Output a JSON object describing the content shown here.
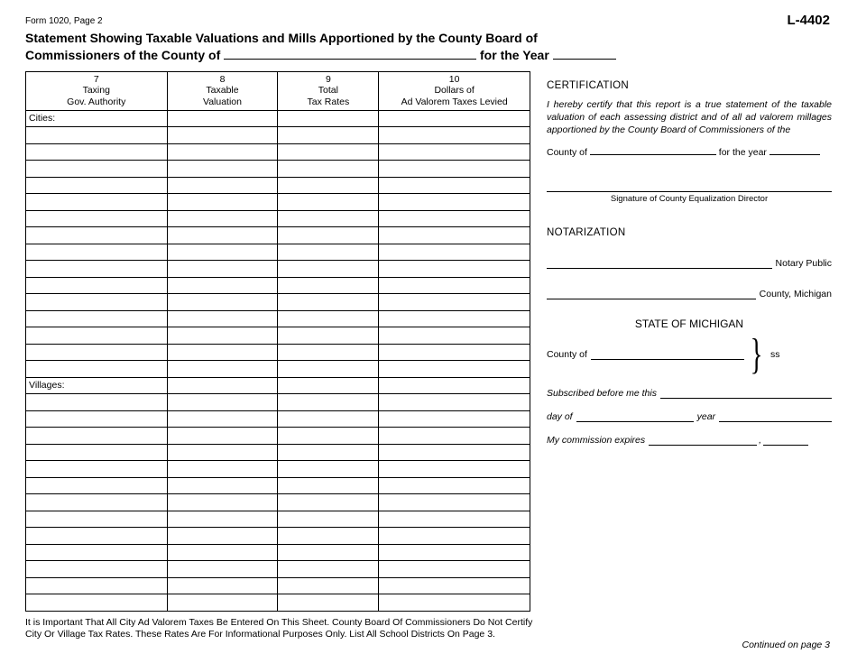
{
  "form_id": "Form 1020, Page 2",
  "form_code": "L-4402",
  "title_part1": "Statement Showing Taxable Valuations and Mills Apportioned by the County Board of",
  "title_part2a": "Commissioners of the County of ",
  "title_part2b": " for the Year ",
  "table": {
    "columns": [
      {
        "num": "7",
        "label1": "Taxing",
        "label2": "Gov. Authority",
        "width": "28%"
      },
      {
        "num": "8",
        "label1": "Taxable",
        "label2": "Valuation",
        "width": "22%"
      },
      {
        "num": "9",
        "label1": "Total",
        "label2": "Tax Rates",
        "width": "20%"
      },
      {
        "num": "10",
        "label1": "Dollars of",
        "label2": "Ad Valorem Taxes Levied",
        "width": "30%"
      }
    ],
    "rows_before_cities": 0,
    "cities_label": "Cities:",
    "rows_cities": 15,
    "villages_label": "Villages:",
    "rows_villages": 13
  },
  "cert": {
    "heading": "CERTIFICATION",
    "text": "I hereby certify that this report is a true statement of the taxable valuation of each assessing district and of all ad valorem millages apportioned by the County Board of Commissioners of the",
    "county_prefix": "County of ",
    "year_prefix": " for the year ",
    "sig_caption": "Signature of County Equalization Director"
  },
  "notary": {
    "heading": "NOTARIZATION",
    "public_suffix": "Notary Public",
    "county_suffix": " County, Michigan",
    "state_heading": "STATE OF MICHIGAN",
    "county_prefix": "County of ",
    "ss": "ss",
    "subscribed": "Subscribed before me this ",
    "day_of": "day of ",
    "year": " year ",
    "expires": "My commission expires ",
    "comma": ", "
  },
  "footer_line1": "It is Important That All City Ad Valorem Taxes Be Entered On This Sheet. County Board Of Commissioners Do Not Certify",
  "footer_line2": "City Or Village Tax Rates. These Rates Are For Informational Purposes Only. List All School Districts On Page 3.",
  "continued": "Continued on page 3",
  "colors": {
    "text": "#000000",
    "background": "#ffffff",
    "border": "#000000"
  }
}
